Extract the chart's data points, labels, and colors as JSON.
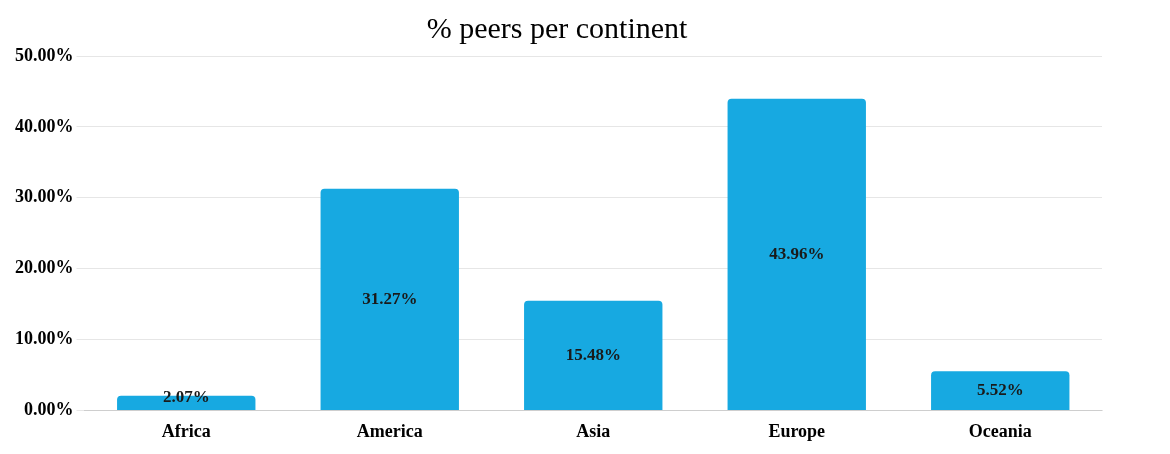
{
  "chart_data": {
    "type": "bar",
    "title": "% peers per continent",
    "categories": [
      "Africa",
      "America",
      "Asia",
      "Europe",
      "Oceania"
    ],
    "values": [
      2.07,
      31.27,
      15.48,
      43.96,
      5.52
    ],
    "value_labels": [
      "2.07%",
      "31.27%",
      "15.48%",
      "43.96%",
      "5.52%"
    ],
    "color": "#17a9e1",
    "ylim": [
      0,
      50
    ],
    "yticks": [
      {
        "value": 0,
        "label": "0.00%"
      },
      {
        "value": 10,
        "label": "10.00%"
      },
      {
        "value": 20,
        "label": "20.00%"
      },
      {
        "value": 30,
        "label": "30.00%"
      },
      {
        "value": 40,
        "label": "40.00%"
      },
      {
        "value": 50,
        "label": "50.00%"
      }
    ],
    "grid": "y"
  }
}
